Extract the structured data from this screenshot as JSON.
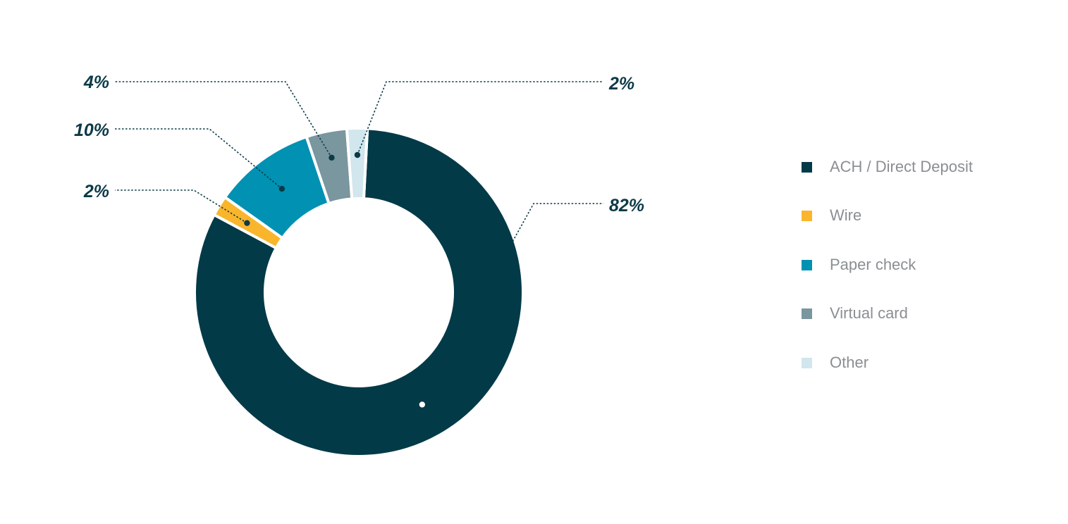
{
  "chart_data": {
    "type": "pie",
    "variant": "donut",
    "categories": [
      "ACH / Direct Deposit",
      "Wire",
      "Paper check",
      "Virtual card",
      "Other"
    ],
    "values": [
      82,
      2,
      10,
      4,
      2
    ],
    "value_labels": [
      "82%",
      "2%",
      "10%",
      "4%",
      "2%"
    ],
    "colors": [
      "#023a48",
      "#f9b62c",
      "#0091b3",
      "#7a969f",
      "#d1e6ed"
    ],
    "legend_position": "right",
    "start_angle_deg": 3,
    "order": "clockwise"
  }
}
